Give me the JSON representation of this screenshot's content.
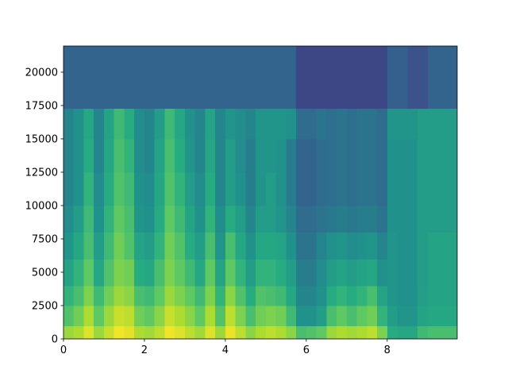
{
  "chart_data": {
    "type": "heatmap",
    "colormap": "viridis",
    "x": [
      0,
      0.25,
      0.5,
      0.75,
      1,
      1.25,
      1.5,
      1.75,
      2,
      2.25,
      2.5,
      2.75,
      3,
      3.25,
      3.5,
      3.75,
      4,
      4.25,
      4.5,
      4.75,
      5,
      5.25,
      5.5,
      5.75,
      6,
      6.25,
      6.5,
      6.75,
      7,
      7.25,
      7.5,
      7.75,
      8,
      8.25,
      8.5,
      8.75,
      9,
      9.25,
      9.5,
      9.75
    ],
    "y": [
      0,
      1000,
      2500,
      4000,
      6000,
      8000,
      10000,
      12500,
      15000,
      17300,
      22050
    ],
    "values": [
      [
        0.85,
        0.88,
        0.95,
        0.85,
        0.92,
        0.98,
        0.96,
        0.88,
        0.86,
        0.9,
        0.98,
        0.95,
        0.9,
        0.86,
        0.95,
        0.85,
        0.97,
        0.9,
        0.82,
        0.88,
        0.9,
        0.88,
        0.82,
        0.7,
        0.72,
        0.75,
        0.85,
        0.88,
        0.86,
        0.88,
        0.9,
        0.8,
        0.62,
        0.6,
        0.6,
        0.68,
        0.7,
        0.7,
        0.7
      ],
      [
        0.72,
        0.78,
        0.88,
        0.75,
        0.85,
        0.92,
        0.9,
        0.78,
        0.75,
        0.82,
        0.92,
        0.88,
        0.82,
        0.75,
        0.88,
        0.72,
        0.9,
        0.8,
        0.7,
        0.78,
        0.8,
        0.78,
        0.68,
        0.5,
        0.5,
        0.55,
        0.7,
        0.75,
        0.7,
        0.75,
        0.78,
        0.65,
        0.55,
        0.52,
        0.52,
        0.58,
        0.6,
        0.6,
        0.6
      ],
      [
        0.65,
        0.7,
        0.8,
        0.68,
        0.78,
        0.85,
        0.82,
        0.7,
        0.68,
        0.75,
        0.85,
        0.8,
        0.75,
        0.68,
        0.8,
        0.65,
        0.82,
        0.72,
        0.62,
        0.72,
        0.7,
        0.68,
        0.6,
        0.45,
        0.45,
        0.5,
        0.62,
        0.65,
        0.62,
        0.65,
        0.7,
        0.58,
        0.52,
        0.5,
        0.5,
        0.56,
        0.58,
        0.58,
        0.58
      ],
      [
        0.58,
        0.65,
        0.75,
        0.6,
        0.72,
        0.8,
        0.78,
        0.62,
        0.6,
        0.7,
        0.8,
        0.75,
        0.68,
        0.6,
        0.75,
        0.58,
        0.75,
        0.65,
        0.55,
        0.65,
        0.65,
        0.62,
        0.55,
        0.42,
        0.42,
        0.48,
        0.55,
        0.58,
        0.55,
        0.58,
        0.6,
        0.5,
        0.52,
        0.5,
        0.5,
        0.55,
        0.58,
        0.58,
        0.58
      ],
      [
        0.52,
        0.6,
        0.7,
        0.55,
        0.68,
        0.78,
        0.72,
        0.58,
        0.55,
        0.65,
        0.78,
        0.72,
        0.62,
        0.55,
        0.7,
        0.52,
        0.7,
        0.6,
        0.5,
        0.6,
        0.6,
        0.58,
        0.5,
        0.38,
        0.38,
        0.45,
        0.5,
        0.52,
        0.48,
        0.5,
        0.52,
        0.45,
        0.52,
        0.5,
        0.5,
        0.55,
        0.58,
        0.58,
        0.58
      ],
      [
        0.48,
        0.55,
        0.68,
        0.5,
        0.65,
        0.75,
        0.7,
        0.52,
        0.5,
        0.62,
        0.75,
        0.68,
        0.58,
        0.5,
        0.65,
        0.48,
        0.62,
        0.55,
        0.45,
        0.55,
        0.55,
        0.52,
        0.45,
        0.35,
        0.35,
        0.38,
        0.4,
        0.42,
        0.4,
        0.42,
        0.42,
        0.38,
        0.5,
        0.5,
        0.5,
        0.55,
        0.55,
        0.55,
        0.55
      ],
      [
        0.45,
        0.5,
        0.65,
        0.48,
        0.62,
        0.72,
        0.68,
        0.5,
        0.48,
        0.6,
        0.72,
        0.65,
        0.55,
        0.48,
        0.62,
        0.45,
        0.55,
        0.5,
        0.42,
        0.52,
        0.55,
        0.5,
        0.42,
        0.32,
        0.32,
        0.35,
        0.36,
        0.38,
        0.36,
        0.38,
        0.38,
        0.35,
        0.5,
        0.5,
        0.5,
        0.55,
        0.55,
        0.55,
        0.55
      ],
      [
        0.45,
        0.5,
        0.62,
        0.45,
        0.6,
        0.7,
        0.65,
        0.48,
        0.45,
        0.58,
        0.7,
        0.62,
        0.52,
        0.45,
        0.6,
        0.45,
        0.55,
        0.48,
        0.42,
        0.52,
        0.52,
        0.5,
        0.42,
        0.32,
        0.32,
        0.35,
        0.36,
        0.38,
        0.36,
        0.38,
        0.38,
        0.35,
        0.5,
        0.5,
        0.5,
        0.55,
        0.55,
        0.55,
        0.55
      ],
      [
        0.45,
        0.5,
        0.6,
        0.45,
        0.58,
        0.68,
        0.62,
        0.48,
        0.45,
        0.55,
        0.68,
        0.6,
        0.5,
        0.45,
        0.58,
        0.45,
        0.52,
        0.48,
        0.45,
        0.52,
        0.52,
        0.52,
        0.5,
        0.35,
        0.35,
        0.38,
        0.36,
        0.38,
        0.36,
        0.38,
        0.38,
        0.35,
        0.52,
        0.52,
        0.52,
        0.55,
        0.55,
        0.55,
        0.55
      ],
      [
        0.32,
        0.32,
        0.32,
        0.32,
        0.32,
        0.32,
        0.32,
        0.32,
        0.32,
        0.32,
        0.32,
        0.32,
        0.32,
        0.32,
        0.32,
        0.32,
        0.32,
        0.32,
        0.32,
        0.32,
        0.32,
        0.32,
        0.32,
        0.22,
        0.22,
        0.22,
        0.22,
        0.22,
        0.22,
        0.22,
        0.22,
        0.22,
        0.3,
        0.3,
        0.25,
        0.25,
        0.32,
        0.32,
        0.32
      ]
    ],
    "xlim": [
      0,
      9.73
    ],
    "ylim": [
      0,
      21960
    ],
    "xticks": [
      0,
      2,
      4,
      6,
      8
    ],
    "yticks": [
      0,
      2500,
      5000,
      7500,
      10000,
      12500,
      15000,
      17500,
      20000
    ]
  }
}
